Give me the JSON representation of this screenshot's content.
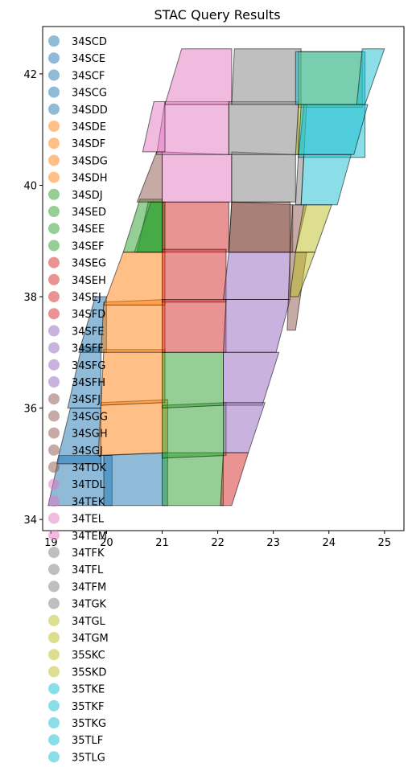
{
  "chart_data": {
    "type": "map",
    "title": "STAC Query Results",
    "xlim": [
      18.85,
      25.35
    ],
    "ylim": [
      33.8,
      42.85
    ],
    "xticks": [
      19,
      20,
      21,
      22,
      23,
      24,
      25
    ],
    "yticks": [
      34,
      36,
      38,
      40,
      42
    ],
    "legend_position": "upper-left",
    "legend": [
      {
        "label": "34SCD",
        "color": "#1f77b4"
      },
      {
        "label": "34SCE",
        "color": "#1f77b4"
      },
      {
        "label": "34SCF",
        "color": "#1f77b4"
      },
      {
        "label": "34SCG",
        "color": "#1f77b4"
      },
      {
        "label": "34SDD",
        "color": "#1f77b4"
      },
      {
        "label": "34SDE",
        "color": "#ff7f0e"
      },
      {
        "label": "34SDF",
        "color": "#ff7f0e"
      },
      {
        "label": "34SDG",
        "color": "#ff7f0e"
      },
      {
        "label": "34SDH",
        "color": "#ff7f0e"
      },
      {
        "label": "34SDJ",
        "color": "#2ca02c"
      },
      {
        "label": "34SED",
        "color": "#2ca02c"
      },
      {
        "label": "34SEE",
        "color": "#2ca02c"
      },
      {
        "label": "34SEF",
        "color": "#2ca02c"
      },
      {
        "label": "34SEG",
        "color": "#d62728"
      },
      {
        "label": "34SEH",
        "color": "#d62728"
      },
      {
        "label": "34SEJ",
        "color": "#d62728"
      },
      {
        "label": "34SFD",
        "color": "#d62728"
      },
      {
        "label": "34SFE",
        "color": "#9467bd"
      },
      {
        "label": "34SFF",
        "color": "#9467bd"
      },
      {
        "label": "34SFG",
        "color": "#9467bd"
      },
      {
        "label": "34SFH",
        "color": "#9467bd"
      },
      {
        "label": "34SFJ",
        "color": "#8c564b"
      },
      {
        "label": "34SGG",
        "color": "#8c564b"
      },
      {
        "label": "34SGH",
        "color": "#8c564b"
      },
      {
        "label": "34SGJ",
        "color": "#8c564b"
      },
      {
        "label": "34TDK",
        "color": "#8c564b"
      },
      {
        "label": "34TDL",
        "color": "#e377c2"
      },
      {
        "label": "34TEK",
        "color": "#e377c2"
      },
      {
        "label": "34TEL",
        "color": "#e377c2"
      },
      {
        "label": "34TEM",
        "color": "#e377c2"
      },
      {
        "label": "34TFK",
        "color": "#7f7f7f"
      },
      {
        "label": "34TFL",
        "color": "#7f7f7f"
      },
      {
        "label": "34TFM",
        "color": "#7f7f7f"
      },
      {
        "label": "34TGK",
        "color": "#7f7f7f"
      },
      {
        "label": "34TGL",
        "color": "#bcbd22"
      },
      {
        "label": "34TGM",
        "color": "#bcbd22"
      },
      {
        "label": "35SKC",
        "color": "#bcbd22"
      },
      {
        "label": "35SKD",
        "color": "#bcbd22"
      },
      {
        "label": "35TKE",
        "color": "#17becf"
      },
      {
        "label": "35TKF",
        "color": "#17becf"
      },
      {
        "label": "35TKG",
        "color": "#17becf"
      },
      {
        "label": "35TLF",
        "color": "#17becf"
      },
      {
        "label": "35TLG",
        "color": "#17becf"
      }
    ],
    "tiles": [
      {
        "color": "#1f77b4",
        "poly": [
          [
            18.95,
            34.25
          ],
          [
            19.15,
            35.15
          ],
          [
            20.1,
            35.15
          ],
          [
            20.1,
            34.25
          ]
        ]
      },
      {
        "color": "#1f77b4",
        "poly": [
          [
            19.1,
            35.0
          ],
          [
            19.35,
            36.0
          ],
          [
            19.9,
            36.0
          ],
          [
            19.9,
            35.0
          ]
        ]
      },
      {
        "color": "#1f77b4",
        "poly": [
          [
            19.3,
            36.0
          ],
          [
            19.55,
            37.1
          ],
          [
            19.9,
            37.1
          ],
          [
            19.9,
            36.0
          ]
        ]
      },
      {
        "color": "#1f77b4",
        "poly": [
          [
            19.5,
            37.0
          ],
          [
            19.8,
            38.0
          ],
          [
            20.0,
            38.0
          ],
          [
            20.0,
            37.0
          ]
        ]
      },
      {
        "color": "#1f77b4",
        "poly": [
          [
            19.95,
            34.25
          ],
          [
            19.95,
            35.15
          ],
          [
            21.1,
            35.2
          ],
          [
            21.1,
            34.25
          ]
        ]
      },
      {
        "color": "#ff7f0e",
        "poly": [
          [
            19.85,
            35.15
          ],
          [
            19.9,
            36.1
          ],
          [
            21.1,
            36.15
          ],
          [
            21.1,
            35.2
          ]
        ]
      },
      {
        "color": "#ff7f0e",
        "poly": [
          [
            19.9,
            36.05
          ],
          [
            19.95,
            37.05
          ],
          [
            21.05,
            37.05
          ],
          [
            21.05,
            36.1
          ]
        ]
      },
      {
        "color": "#ff7f0e",
        "poly": [
          [
            19.9,
            37.0
          ],
          [
            19.95,
            37.9
          ],
          [
            21.05,
            37.95
          ],
          [
            21.05,
            37.0
          ]
        ]
      },
      {
        "color": "#ff7f0e",
        "poly": [
          [
            19.95,
            37.85
          ],
          [
            20.3,
            38.8
          ],
          [
            21.05,
            38.8
          ],
          [
            21.05,
            37.85
          ]
        ]
      },
      {
        "color": "#2ca02c",
        "poly": [
          [
            20.55,
            38.8
          ],
          [
            20.75,
            39.7
          ],
          [
            21.05,
            39.7
          ],
          [
            21.05,
            38.8
          ]
        ]
      },
      {
        "color": "#2ca02c",
        "poly": [
          [
            21.0,
            34.25
          ],
          [
            21.0,
            35.2
          ],
          [
            22.1,
            35.2
          ],
          [
            22.1,
            34.25
          ]
        ]
      },
      {
        "color": "#2ca02c",
        "poly": [
          [
            20.5,
            38.8
          ],
          [
            20.8,
            39.7
          ],
          [
            21.05,
            39.7
          ],
          [
            21.05,
            38.8
          ]
        ]
      },
      {
        "color": "#2ca02c",
        "poly": [
          [
            21.0,
            35.1
          ],
          [
            21.0,
            36.05
          ],
          [
            22.15,
            36.1
          ],
          [
            22.15,
            35.15
          ]
        ]
      },
      {
        "color": "#2ca02c",
        "poly": [
          [
            21.0,
            36.0
          ],
          [
            21.0,
            37.0
          ],
          [
            22.1,
            37.0
          ],
          [
            22.1,
            36.05
          ]
        ]
      },
      {
        "color": "#2ca02c",
        "poly": [
          [
            20.3,
            38.8
          ],
          [
            20.6,
            39.75
          ],
          [
            21.0,
            39.75
          ],
          [
            21.0,
            38.8
          ]
        ]
      },
      {
        "color": "#d62728",
        "poly": [
          [
            21.0,
            38.8
          ],
          [
            21.0,
            39.7
          ],
          [
            22.2,
            39.7
          ],
          [
            22.2,
            38.8
          ]
        ]
      },
      {
        "color": "#d62728",
        "poly": [
          [
            21.0,
            37.9
          ],
          [
            21.0,
            38.85
          ],
          [
            22.15,
            38.85
          ],
          [
            22.15,
            37.9
          ]
        ]
      },
      {
        "color": "#d62728",
        "poly": [
          [
            21.0,
            37.0
          ],
          [
            21.0,
            37.95
          ],
          [
            22.15,
            37.95
          ],
          [
            22.15,
            37.0
          ]
        ]
      },
      {
        "color": "#d62728",
        "poly": [
          [
            22.05,
            34.25
          ],
          [
            22.1,
            35.2
          ],
          [
            22.55,
            35.2
          ],
          [
            22.25,
            34.25
          ]
        ]
      },
      {
        "color": "#9467bd",
        "poly": [
          [
            22.1,
            37.95
          ],
          [
            22.2,
            38.8
          ],
          [
            23.3,
            38.8
          ],
          [
            23.3,
            37.95
          ]
        ]
      },
      {
        "color": "#9467bd",
        "poly": [
          [
            22.1,
            37.0
          ],
          [
            22.15,
            37.95
          ],
          [
            23.3,
            37.95
          ],
          [
            23.05,
            37.0
          ]
        ]
      },
      {
        "color": "#9467bd",
        "poly": [
          [
            22.1,
            36.05
          ],
          [
            22.1,
            37.0
          ],
          [
            23.1,
            37.0
          ],
          [
            22.8,
            36.05
          ]
        ]
      },
      {
        "color": "#9467bd",
        "poly": [
          [
            22.1,
            35.2
          ],
          [
            22.1,
            36.1
          ],
          [
            22.85,
            36.1
          ],
          [
            22.55,
            35.2
          ]
        ]
      },
      {
        "color": "#8c564b",
        "poly": [
          [
            22.2,
            38.8
          ],
          [
            22.25,
            39.7
          ],
          [
            23.35,
            39.65
          ],
          [
            23.35,
            38.8
          ]
        ]
      },
      {
        "color": "#8c564b",
        "poly": [
          [
            23.3,
            38.8
          ],
          [
            23.35,
            39.65
          ],
          [
            23.6,
            39.65
          ],
          [
            23.4,
            38.8
          ]
        ]
      },
      {
        "color": "#8c564b",
        "poly": [
          [
            22.2,
            38.8
          ],
          [
            22.25,
            39.7
          ],
          [
            23.3,
            39.7
          ],
          [
            23.3,
            38.8
          ]
        ]
      },
      {
        "color": "#8c564b",
        "poly": [
          [
            23.25,
            37.4
          ],
          [
            23.3,
            38.8
          ],
          [
            23.6,
            38.8
          ],
          [
            23.4,
            37.4
          ]
        ]
      },
      {
        "color": "#8c564b",
        "poly": [
          [
            20.55,
            39.7
          ],
          [
            20.9,
            40.6
          ],
          [
            21.0,
            40.6
          ],
          [
            21.0,
            39.7
          ]
        ]
      },
      {
        "color": "#e377c2",
        "poly": [
          [
            21.0,
            39.7
          ],
          [
            21.0,
            40.6
          ],
          [
            22.25,
            40.55
          ],
          [
            22.25,
            39.7
          ]
        ]
      },
      {
        "color": "#e377c2",
        "poly": [
          [
            20.9,
            40.55
          ],
          [
            21.05,
            41.5
          ],
          [
            22.2,
            41.5
          ],
          [
            22.2,
            40.55
          ]
        ]
      },
      {
        "color": "#e377c2",
        "poly": [
          [
            21.05,
            41.45
          ],
          [
            21.35,
            42.45
          ],
          [
            22.25,
            42.45
          ],
          [
            22.25,
            41.45
          ]
        ]
      },
      {
        "color": "#e377c2",
        "poly": [
          [
            20.65,
            40.6
          ],
          [
            20.85,
            41.5
          ],
          [
            21.05,
            41.5
          ],
          [
            21.05,
            40.6
          ]
        ]
      },
      {
        "color": "#7f7f7f",
        "poly": [
          [
            22.25,
            39.7
          ],
          [
            22.25,
            40.6
          ],
          [
            23.4,
            40.55
          ],
          [
            23.4,
            39.7
          ]
        ]
      },
      {
        "color": "#7f7f7f",
        "poly": [
          [
            22.2,
            40.55
          ],
          [
            22.2,
            41.5
          ],
          [
            23.45,
            41.5
          ],
          [
            23.45,
            40.55
          ]
        ]
      },
      {
        "color": "#7f7f7f",
        "poly": [
          [
            22.25,
            41.45
          ],
          [
            22.3,
            42.45
          ],
          [
            23.5,
            42.45
          ],
          [
            23.5,
            41.45
          ]
        ]
      },
      {
        "color": "#7f7f7f",
        "poly": [
          [
            23.4,
            39.65
          ],
          [
            23.45,
            40.55
          ],
          [
            23.55,
            40.55
          ],
          [
            23.5,
            39.65
          ]
        ]
      },
      {
        "color": "#bcbd22",
        "poly": [
          [
            23.4,
            38.8
          ],
          [
            23.55,
            39.65
          ],
          [
            24.05,
            39.65
          ],
          [
            23.75,
            38.8
          ]
        ]
      },
      {
        "color": "#bcbd22",
        "poly": [
          [
            23.45,
            41.4
          ],
          [
            23.45,
            42.4
          ],
          [
            24.6,
            42.4
          ],
          [
            24.6,
            41.4
          ]
        ]
      },
      {
        "color": "#bcbd22",
        "poly": [
          [
            23.4,
            40.55
          ],
          [
            23.45,
            41.45
          ],
          [
            23.6,
            41.45
          ],
          [
            23.55,
            40.55
          ]
        ]
      },
      {
        "color": "#bcbd22",
        "poly": [
          [
            23.3,
            38.0
          ],
          [
            23.4,
            38.8
          ],
          [
            23.75,
            38.8
          ],
          [
            23.45,
            38.0
          ]
        ]
      },
      {
        "color": "#17becf",
        "poly": [
          [
            23.45,
            40.5
          ],
          [
            23.55,
            41.45
          ],
          [
            24.65,
            41.45
          ],
          [
            24.65,
            40.5
          ]
        ]
      },
      {
        "color": "#17becf",
        "poly": [
          [
            23.5,
            39.65
          ],
          [
            23.55,
            40.55
          ],
          [
            24.4,
            40.55
          ],
          [
            24.15,
            39.65
          ]
        ]
      },
      {
        "color": "#17becf",
        "poly": [
          [
            23.4,
            41.45
          ],
          [
            23.4,
            42.4
          ],
          [
            24.65,
            42.4
          ],
          [
            24.65,
            41.45
          ]
        ]
      },
      {
        "color": "#17becf",
        "poly": [
          [
            24.5,
            41.45
          ],
          [
            24.6,
            42.45
          ],
          [
            25.0,
            42.45
          ],
          [
            24.65,
            41.45
          ]
        ]
      },
      {
        "color": "#17becf",
        "poly": [
          [
            23.45,
            40.55
          ],
          [
            23.5,
            41.45
          ],
          [
            24.7,
            41.45
          ],
          [
            24.45,
            40.55
          ]
        ]
      }
    ]
  }
}
